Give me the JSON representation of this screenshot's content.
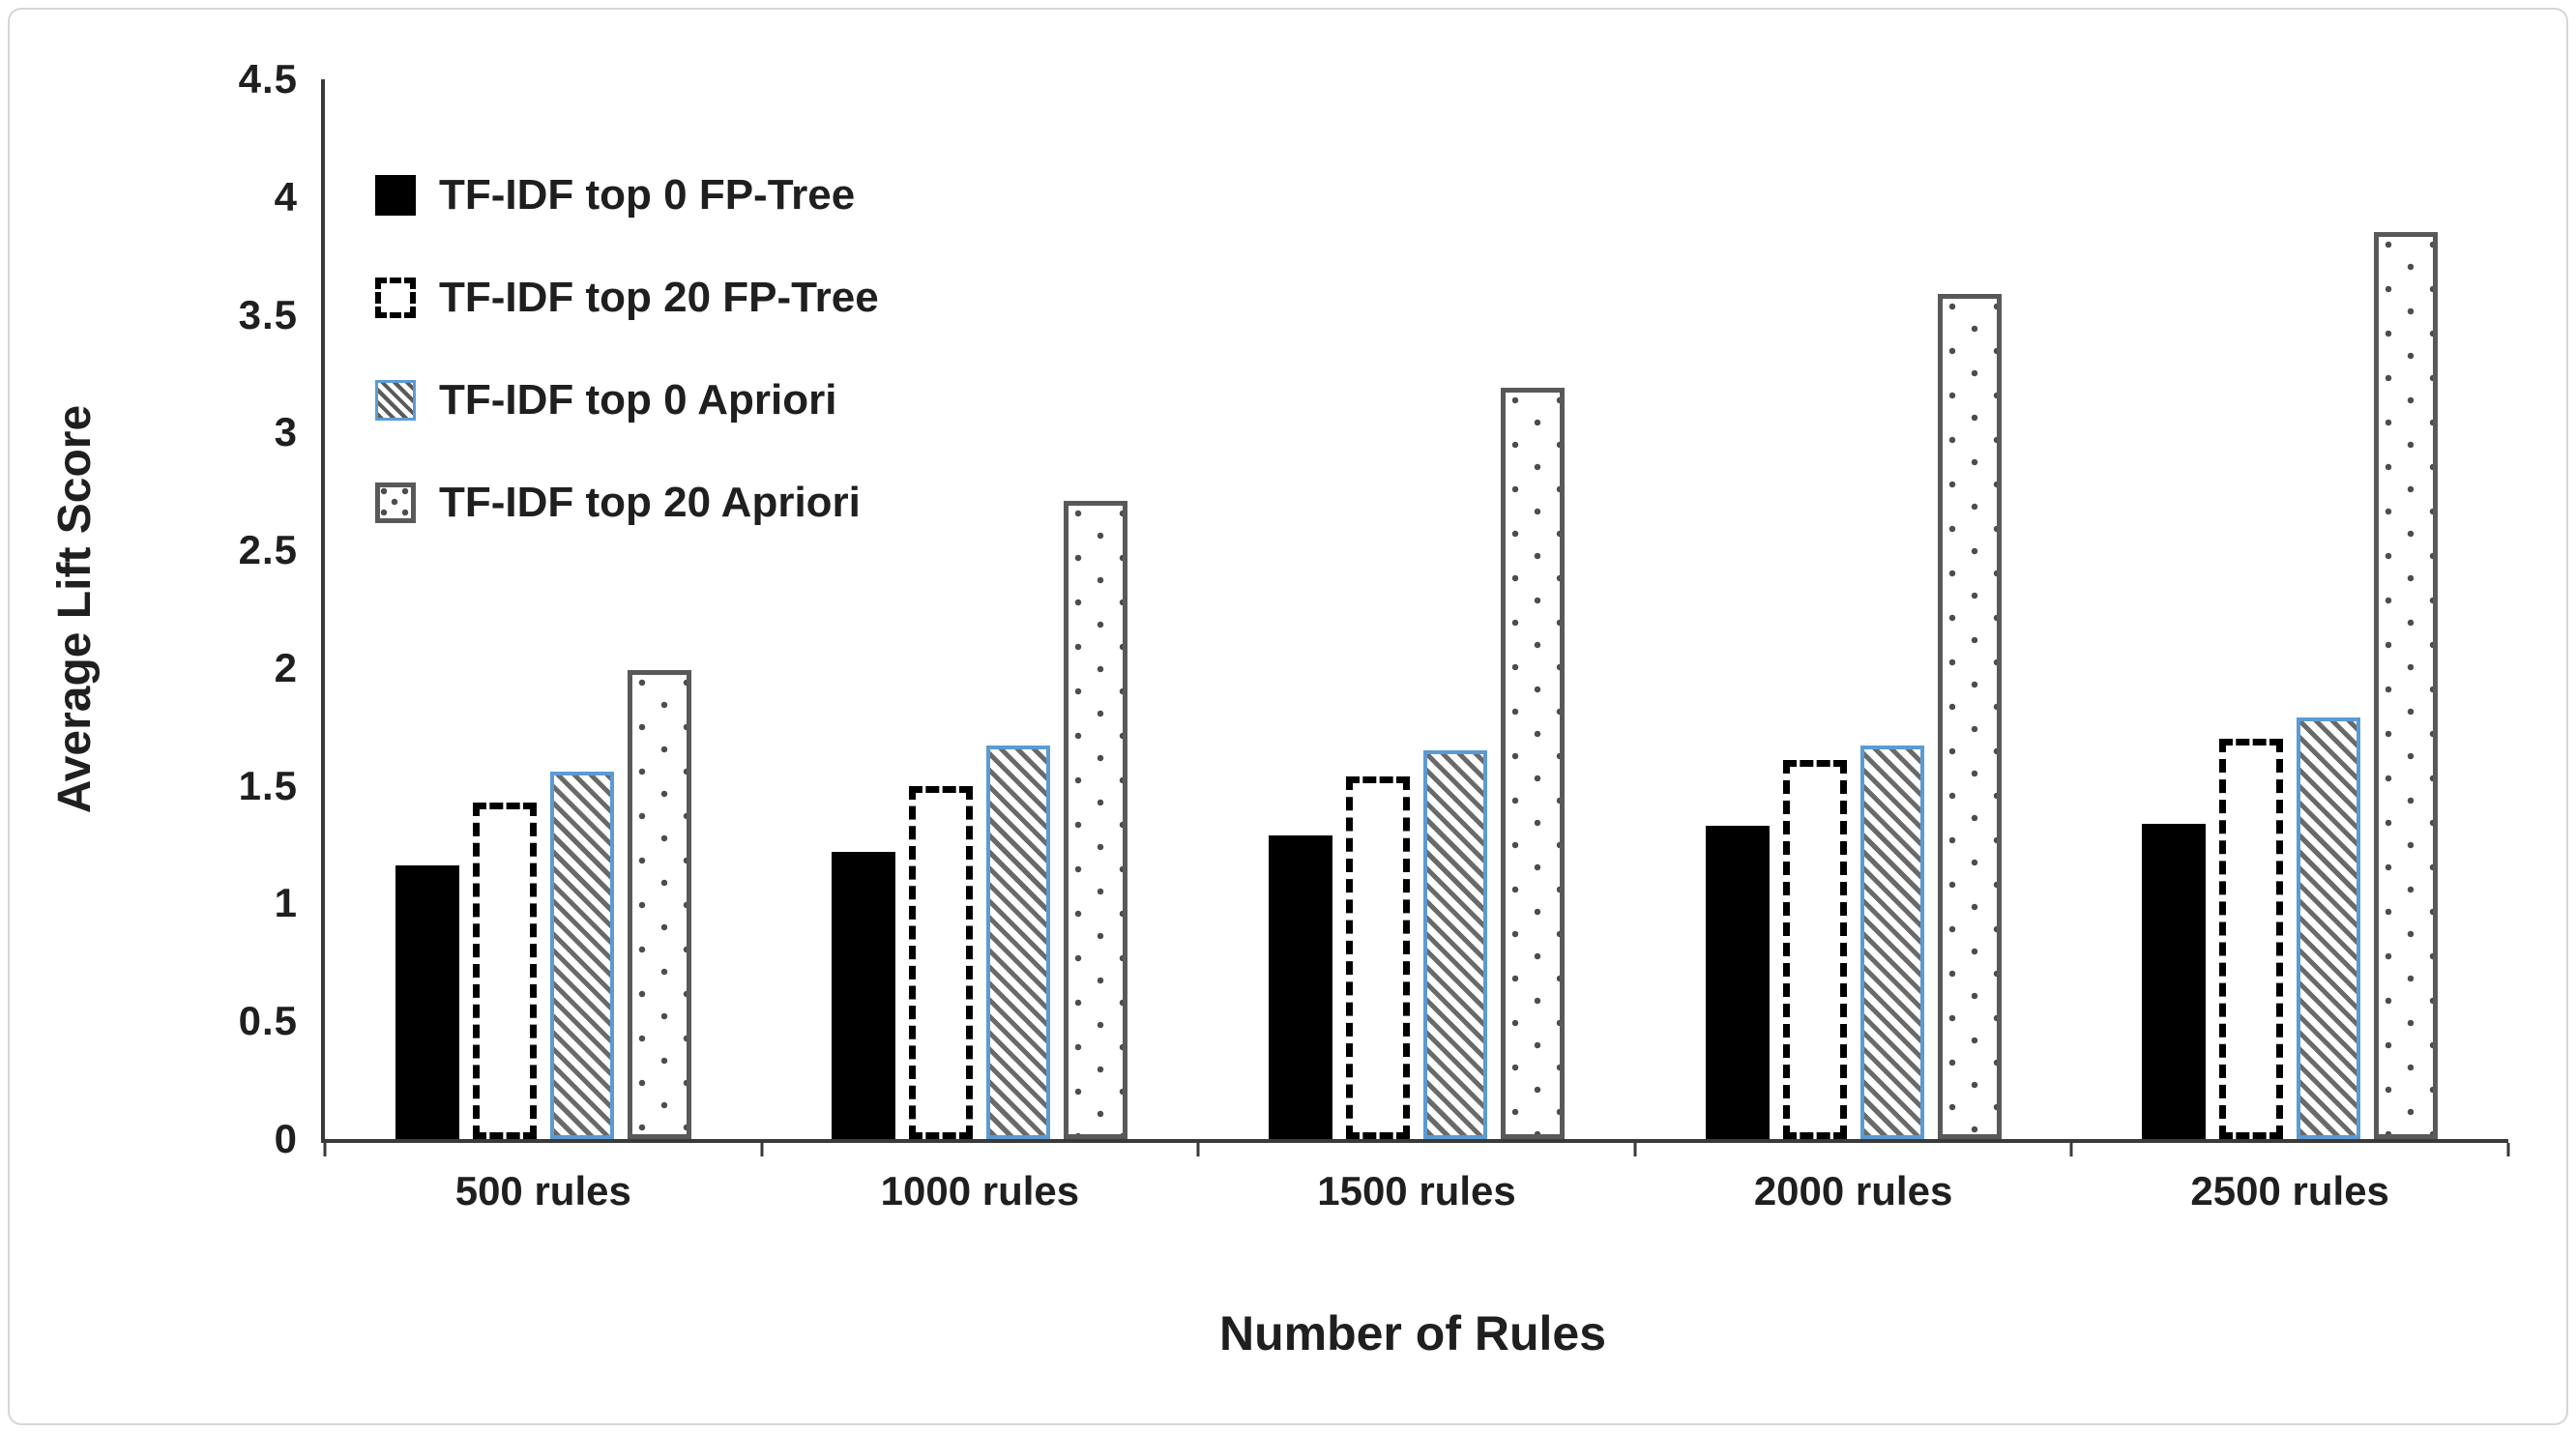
{
  "figure": {
    "background": "#ffffff",
    "frame_border_color": "#d6d6d6"
  },
  "colors": {
    "bar_black": "#000000",
    "hatch_border_blue": "#5b9bd5",
    "hatch_stripe_gray": "#6a6a6a",
    "dotted_border_gray": "#595959",
    "axis_line": "#3a3a3a",
    "text": "#1f1f1f"
  },
  "chart_data": {
    "type": "bar",
    "title": "",
    "xlabel": "Number of Rules",
    "ylabel": "Average Lift Score",
    "categories": [
      "500 rules",
      "1000 rules",
      "1500 rules",
      "2000 rules",
      "2500 rules"
    ],
    "series": [
      {
        "name": "TF-IDF top 0 FP-Tree",
        "pattern": "solid-black",
        "values": [
          1.16,
          1.22,
          1.29,
          1.33,
          1.34
        ]
      },
      {
        "name": "TF-IDF top 20 FP-Tree",
        "pattern": "dashed-outline",
        "values": [
          1.43,
          1.5,
          1.54,
          1.61,
          1.7
        ]
      },
      {
        "name": "TF-IDF top 0 Apriori",
        "pattern": "diagonal-hatch",
        "values": [
          1.56,
          1.67,
          1.65,
          1.67,
          1.79
        ]
      },
      {
        "name": "TF-IDF top 20 Apriori",
        "pattern": "dotted",
        "values": [
          1.99,
          2.71,
          3.19,
          3.59,
          3.85
        ]
      }
    ],
    "ylim": [
      0,
      4.5
    ],
    "yticks": [
      0,
      0.5,
      1,
      1.5,
      2,
      2.5,
      3,
      3.5,
      4,
      4.5
    ],
    "ytick_labels": [
      "0",
      "0.5",
      "1",
      "1.5",
      "2",
      "2.5",
      "3",
      "3.5",
      "4",
      "4.5"
    ],
    "grid": false,
    "legend_position": "top-left-inside"
  }
}
